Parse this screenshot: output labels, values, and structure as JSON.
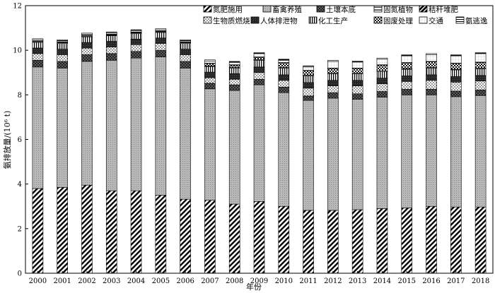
{
  "chart_data": {
    "type": "bar",
    "stacked": true,
    "xlabel": "年份",
    "ylabel": "氨排放量/(10⁶ t)",
    "ylim": [
      0,
      12
    ],
    "yticks": [
      0,
      2,
      4,
      6,
      8,
      10,
      12
    ],
    "grid": false,
    "legend_position": "top-right",
    "categories": [
      "2000",
      "2001",
      "2002",
      "2003",
      "2004",
      "2005",
      "2006",
      "2007",
      "2008",
      "2009",
      "2010",
      "2011",
      "2012",
      "2013",
      "2014",
      "2015",
      "2016",
      "2017",
      "2018"
    ],
    "series": [
      {
        "name": "氮肥施用",
        "pattern": "diag",
        "values": [
          3.8,
          3.85,
          3.95,
          3.7,
          3.7,
          3.5,
          3.32,
          3.27,
          3.1,
          3.22,
          3.0,
          2.82,
          2.82,
          2.85,
          2.9,
          2.93,
          3.0,
          2.97,
          2.97
        ]
      },
      {
        "name": "畜禽养殖",
        "pattern": "dots-gray",
        "values": [
          5.45,
          5.35,
          5.55,
          5.85,
          5.95,
          6.2,
          5.88,
          5.0,
          5.1,
          5.23,
          5.1,
          4.93,
          5.03,
          4.95,
          5.0,
          5.07,
          5.0,
          4.95,
          5.0
        ]
      },
      {
        "name": "土壤本底",
        "pattern": "cross",
        "values": [
          0.3,
          0.3,
          0.3,
          0.3,
          0.3,
          0.3,
          0.3,
          0.25,
          0.25,
          0.25,
          0.25,
          0.2,
          0.25,
          0.25,
          0.25,
          0.25,
          0.25,
          0.25,
          0.25
        ]
      },
      {
        "name": "生物质燃烧",
        "pattern": "dots-sparse",
        "values": [
          0.3,
          0.3,
          0.3,
          0.3,
          0.3,
          0.3,
          0.3,
          0.25,
          0.25,
          0.3,
          0.3,
          0.35,
          0.3,
          0.35,
          0.35,
          0.35,
          0.4,
          0.4,
          0.4
        ]
      },
      {
        "name": "人体排泄物",
        "pattern": "dark",
        "values": [
          0.25,
          0.25,
          0.25,
          0.25,
          0.25,
          0.25,
          0.25,
          0.25,
          0.25,
          0.25,
          0.25,
          0.25,
          0.25,
          0.25,
          0.25,
          0.25,
          0.25,
          0.25,
          0.25
        ]
      },
      {
        "name": "化工生产",
        "pattern": "vlines",
        "values": [
          0.25,
          0.25,
          0.25,
          0.25,
          0.25,
          0.25,
          0.25,
          0.25,
          0.25,
          0.3,
          0.3,
          0.3,
          0.3,
          0.3,
          0.3,
          0.3,
          0.3,
          0.3,
          0.3
        ]
      },
      {
        "name": "固氮植物",
        "pattern": "hband",
        "values": [
          0.03,
          0.03,
          0.03,
          0.03,
          0.03,
          0.03,
          0.03,
          0.03,
          0.03,
          0.03,
          0.03,
          0.03,
          0.03,
          0.03,
          0.03,
          0.03,
          0.03,
          0.03,
          0.03
        ]
      },
      {
        "name": "固废处理",
        "pattern": "checker",
        "values": [
          0.02,
          0.02,
          0.02,
          0.02,
          0.02,
          0.02,
          0.02,
          0.1,
          0.1,
          0.1,
          0.2,
          0.2,
          0.2,
          0.2,
          0.25,
          0.25,
          0.25,
          0.25,
          0.25
        ]
      },
      {
        "name": "秸秆堆肥",
        "pattern": "bold-diag",
        "values": [
          0.02,
          0.02,
          0.02,
          0.02,
          0.02,
          0.02,
          0.02,
          0.02,
          0.02,
          0.02,
          0.02,
          0.02,
          0.02,
          0.02,
          0.02,
          0.02,
          0.02,
          0.02,
          0.02
        ]
      },
      {
        "name": "交通",
        "pattern": "white-grid",
        "values": [
          0.05,
          0.05,
          0.05,
          0.05,
          0.05,
          0.05,
          0.05,
          0.1,
          0.1,
          0.15,
          0.1,
          0.15,
          0.3,
          0.27,
          0.25,
          0.3,
          0.3,
          0.33,
          0.38
        ]
      },
      {
        "name": "氨逃逸",
        "pattern": "hlines",
        "values": [
          0.05,
          0.05,
          0.05,
          0.05,
          0.05,
          0.05,
          0.05,
          0.05,
          0.05,
          0.05,
          0.05,
          0.05,
          0.05,
          0.05,
          0.05,
          0.05,
          0.05,
          0.05,
          0.05
        ]
      }
    ],
    "legend_rows": [
      [
        "氮肥施用",
        "畜禽养殖",
        "土壤本底",
        "固氮植物",
        "秸秆堆肥"
      ],
      [
        "生物质燃烧",
        "人体排泄物",
        "化工生产",
        "固废处理",
        "交通",
        "氨逃逸"
      ]
    ]
  }
}
